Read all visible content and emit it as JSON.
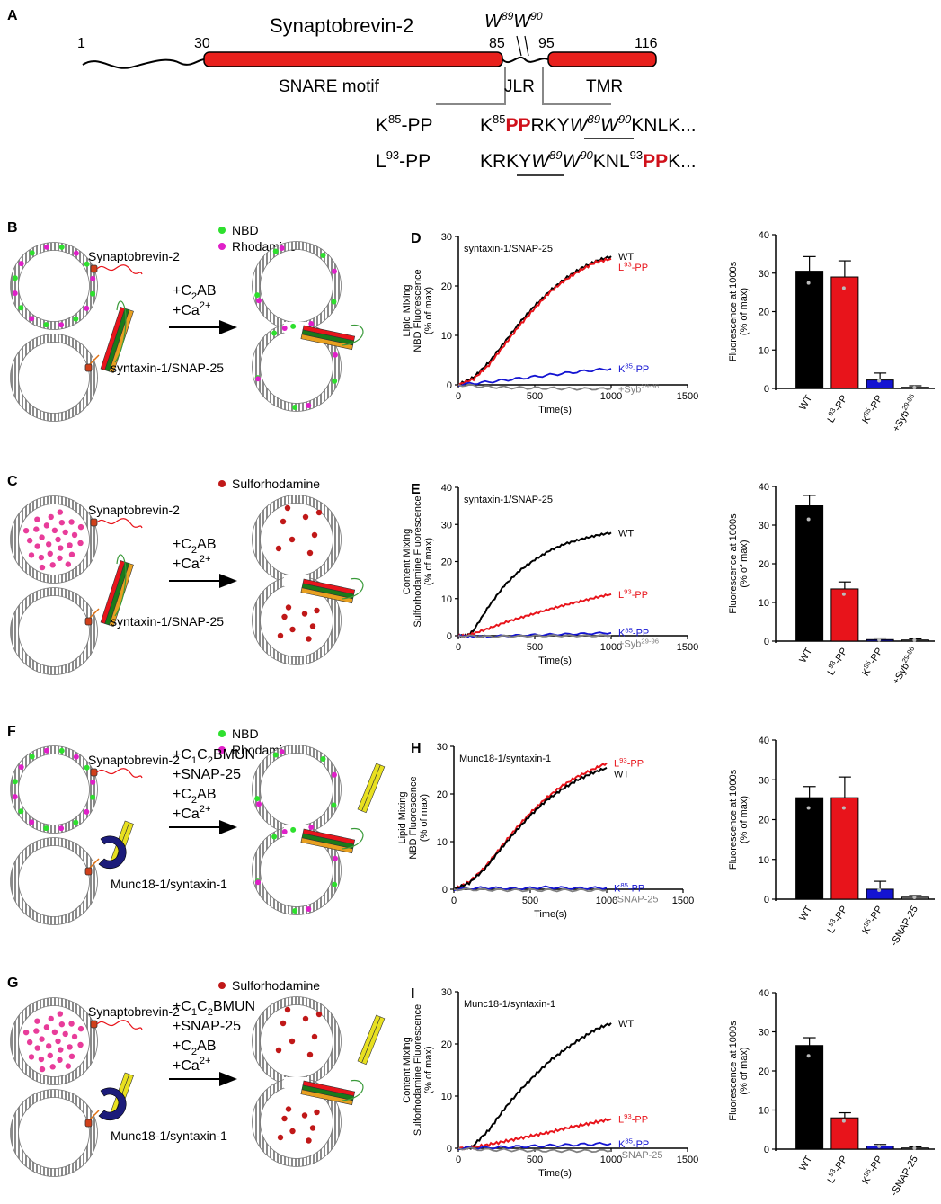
{
  "panel_a": {
    "letter": "A",
    "protein": "Synaptobrevin-2",
    "pos_1": "1",
    "pos_30": "30",
    "pos_85": "85",
    "pos_95": "95",
    "pos_116": "116",
    "w_label": {
      "w1": "W",
      "s1": "89",
      "w2": "W",
      "s2": "90"
    },
    "snare_motif": "SNARE motif",
    "jlr": "JLR",
    "tmr": "TMR",
    "mutant1_name": {
      "a": "K",
      "sup": "85",
      "b": "-PP"
    },
    "mutant1_seq": {
      "a": "K",
      "sup1": "85",
      "pp": "PP",
      "b": "RKY",
      "w1": "W",
      "s1": "89",
      "w2": "W",
      "s2": "90",
      "c": "KNLK..."
    },
    "mutant2_name": {
      "a": "L",
      "sup": "93",
      "b": "-PP"
    },
    "mutant2_seq": {
      "a": "KRKY",
      "w1": "W",
      "s1": "89",
      "w2": "W",
      "s2": "90",
      "b": "KNL",
      "sup2": "93",
      "pp": "PP",
      "c": "K..."
    }
  },
  "schematics": {
    "B": {
      "letter": "B",
      "legend": [
        "NBD",
        "Rhodamine"
      ],
      "vesicle_label": "Synaptobrevin-2",
      "target_label": "syntaxin-1/SNAP-25",
      "steps": [
        "+C2AB",
        "+Ca2+"
      ]
    },
    "C": {
      "letter": "C",
      "legend": [
        "Sulforhodamine"
      ],
      "vesicle_label": "Synaptobrevin-2",
      "target_label": "syntaxin-1/SNAP-25",
      "steps": [
        "+C2AB",
        "+Ca2+"
      ]
    },
    "F": {
      "letter": "F",
      "legend": [
        "NBD",
        "Rhodamine"
      ],
      "vesicle_label": "Synaptobrevin-2",
      "target_label": "Munc18-1/syntaxin-1",
      "steps": [
        "+C1C2BMUN",
        "+SNAP-25",
        "+C2AB",
        "+Ca2+"
      ]
    },
    "G": {
      "letter": "G",
      "legend": [
        "Sulforhodamine"
      ],
      "vesicle_label": "Synaptobrevin-2",
      "target_label": "Munc18-1/syntaxin-1",
      "steps": [
        "+C1C2BMUN",
        "+SNAP-25",
        "+C2AB",
        "+Ca2+"
      ]
    }
  },
  "colors": {
    "wt": "#000000",
    "l93": "#e8141b",
    "k85": "#1414d2",
    "ctrl": "#808080",
    "nbd": "#2ee02e",
    "rhod": "#e020c8",
    "sulfo": "#c01818",
    "snare_red": "#e8201c",
    "munc18": "#1c1c7a"
  },
  "chart_data": [
    {
      "id": "D",
      "letter": "D",
      "type": "line",
      "title": "syntaxin-1/SNAP-25",
      "ylabel_lines": [
        "Lipid Mixing",
        "NBD Fluorescence",
        "(% of max)"
      ],
      "xlabel": "Time(s)",
      "xlim": [
        0,
        1500
      ],
      "ylim": [
        0,
        30
      ],
      "xticks": [
        "0",
        "500",
        "1000",
        "1500"
      ],
      "yticks": [
        "0",
        "10",
        "20",
        "30"
      ],
      "series": [
        {
          "key": "wt",
          "label": "WT",
          "label_base": "WT",
          "label_sup": "",
          "x": [
            0,
            100,
            200,
            300,
            400,
            500,
            600,
            700,
            800,
            900,
            1000
          ],
          "y": [
            0,
            1.5,
            4.5,
            8.5,
            12.5,
            16,
            19,
            21.5,
            23.5,
            25,
            26
          ]
        },
        {
          "key": "l93",
          "label": "L93-PP",
          "label_base": "L",
          "label_sup": "93",
          "label_tail": "-PP",
          "x": [
            0,
            100,
            200,
            300,
            400,
            500,
            600,
            700,
            800,
            900,
            1000
          ],
          "y": [
            0,
            1.2,
            4,
            8,
            12,
            15.5,
            18.8,
            21.2,
            23.2,
            24.8,
            25.5
          ]
        },
        {
          "key": "k85",
          "label": "K85-PP",
          "label_base": "K",
          "label_sup": "85",
          "label_tail": "-PP",
          "x": [
            0,
            200,
            400,
            600,
            800,
            1000
          ],
          "y": [
            0,
            0.6,
            1.3,
            2.0,
            2.7,
            3.3
          ]
        },
        {
          "key": "ctrl",
          "label": "+Syb29-96",
          "label_base": "+Syb",
          "label_sup": "29-96",
          "label_tail": "",
          "x": [
            0,
            200,
            400,
            600,
            800,
            1000
          ],
          "y": [
            0,
            -0.4,
            -0.6,
            -0.7,
            -0.8,
            -0.8
          ]
        }
      ]
    },
    {
      "id": "D_bar",
      "type": "bar",
      "ylabel_lines": [
        "Fluorescence at 1000s",
        "(% of max)"
      ],
      "ylim": [
        0,
        40
      ],
      "yticks": [
        "0",
        "10",
        "20",
        "30",
        "40"
      ],
      "categories": [
        {
          "key": "wt",
          "base": "WT",
          "sup": "",
          "tail": ""
        },
        {
          "key": "l93",
          "base": "L",
          "sup": "93",
          "tail": "-PP"
        },
        {
          "key": "k85",
          "base": "K",
          "sup": "85",
          "tail": "-PP"
        },
        {
          "key": "ctrl",
          "base": "+Syb",
          "sup": "29-96",
          "tail": ""
        }
      ],
      "values": [
        30.5,
        29,
        2.2,
        0.3
      ],
      "errors": [
        3.8,
        4.2,
        1.8,
        0.4
      ]
    },
    {
      "id": "E",
      "letter": "E",
      "type": "line",
      "title": "syntaxin-1/SNAP-25",
      "ylabel_lines": [
        "Content Mixing",
        "Sulforhodamine Fluorescence",
        "(% of max)"
      ],
      "xlabel": "Time(s)",
      "xlim": [
        0,
        1500
      ],
      "ylim": [
        0,
        40
      ],
      "xticks": [
        "0",
        "500",
        "1000",
        "1500"
      ],
      "yticks": [
        "0",
        "10",
        "20",
        "30",
        "40"
      ],
      "series": [
        {
          "key": "wt",
          "label": "WT",
          "label_base": "WT",
          "label_sup": "",
          "label_tail": "",
          "x": [
            0,
            60,
            100,
            200,
            300,
            400,
            500,
            600,
            700,
            800,
            900,
            1000
          ],
          "y": [
            0,
            0,
            1.5,
            8,
            13.5,
            17.5,
            20.5,
            23,
            24.8,
            26,
            27,
            27.8
          ]
        },
        {
          "key": "l93",
          "label": "L93-PP",
          "label_base": "L",
          "label_sup": "93",
          "label_tail": "-PP",
          "x": [
            0,
            60,
            100,
            200,
            300,
            400,
            500,
            600,
            700,
            800,
            900,
            1000
          ],
          "y": [
            0,
            0,
            0.6,
            2,
            3.5,
            4.8,
            6,
            7.2,
            8.3,
            9.3,
            10.3,
            11.2
          ]
        },
        {
          "key": "k85",
          "label": "K85-PP",
          "label_base": "K",
          "label_sup": "85",
          "label_tail": "-PP",
          "x": [
            0,
            100,
            200,
            400,
            600,
            800,
            1000
          ],
          "y": [
            0,
            -0.2,
            -0.2,
            0.1,
            0.3,
            0.5,
            0.8
          ]
        },
        {
          "key": "ctrl",
          "label": "+Syb29-96",
          "label_base": "+Syb",
          "label_sup": "29-96",
          "label_tail": "",
          "x": [
            0,
            200,
            400,
            600,
            800,
            1000
          ],
          "y": [
            0,
            -0.2,
            -0.1,
            0,
            0,
            0
          ]
        }
      ]
    },
    {
      "id": "E_bar",
      "type": "bar",
      "ylabel_lines": [
        "Fluorescence at 1000s",
        "(% of max)"
      ],
      "ylim": [
        0,
        40
      ],
      "yticks": [
        "0",
        "10",
        "20",
        "30",
        "40"
      ],
      "categories": [
        {
          "key": "wt",
          "base": "WT",
          "sup": "",
          "tail": ""
        },
        {
          "key": "l93",
          "base": "L",
          "sup": "93",
          "tail": "-PP"
        },
        {
          "key": "k85",
          "base": "K",
          "sup": "85",
          "tail": "-PP"
        },
        {
          "key": "ctrl",
          "base": "+Syb",
          "sup": "29-96",
          "tail": ""
        }
      ],
      "values": [
        35,
        13.5,
        0.4,
        0.3
      ],
      "errors": [
        2.7,
        1.8,
        0.4,
        0.3
      ]
    },
    {
      "id": "H",
      "letter": "H",
      "type": "line",
      "title": "Munc18-1/syntaxin-1",
      "ylabel_lines": [
        "Lipid Mixing",
        "NBD Fluorescence",
        "(% of max)"
      ],
      "xlabel": "Time(s)",
      "xlim": [
        0,
        1500
      ],
      "ylim": [
        0,
        30
      ],
      "xticks": [
        "0",
        "500",
        "1000",
        "1500"
      ],
      "yticks": [
        "0",
        "10",
        "20",
        "30"
      ],
      "series": [
        {
          "key": "l93",
          "label": "L93-PP",
          "label_base": "L",
          "label_sup": "93",
          "label_tail": "-PP",
          "x": [
            0,
            100,
            200,
            300,
            400,
            500,
            600,
            700,
            800,
            900,
            1000
          ],
          "y": [
            0,
            1.5,
            4.5,
            8.5,
            12.5,
            16,
            19,
            21.5,
            23.5,
            25,
            26.5
          ]
        },
        {
          "key": "wt",
          "label": "WT",
          "label_base": "WT",
          "label_sup": "",
          "label_tail": "",
          "x": [
            0,
            100,
            200,
            300,
            400,
            500,
            600,
            700,
            800,
            900,
            1000
          ],
          "y": [
            0,
            1.3,
            4.2,
            8.2,
            12,
            15.5,
            18.5,
            20.8,
            22.8,
            24.3,
            25.5
          ]
        },
        {
          "key": "k85",
          "label": "K85-PP",
          "label_base": "K",
          "label_sup": "85",
          "label_tail": "-PP",
          "x": [
            0,
            200,
            400,
            600,
            800,
            1000
          ],
          "y": [
            0,
            0.3,
            0.1,
            0.4,
            0.2,
            0.3
          ]
        },
        {
          "key": "ctrl",
          "label": "-SNAP-25",
          "label_base": "-SNAP-25",
          "label_sup": "",
          "label_tail": "",
          "x": [
            0,
            200,
            400,
            600,
            800,
            1000
          ],
          "y": [
            0,
            -0.1,
            -0.2,
            -0.2,
            -0.2,
            -0.2
          ]
        }
      ]
    },
    {
      "id": "H_bar",
      "type": "bar",
      "ylabel_lines": [
        "Fluorescence at 1000s",
        "(% of max)"
      ],
      "ylim": [
        0,
        40
      ],
      "yticks": [
        "0",
        "10",
        "20",
        "30",
        "40"
      ],
      "categories": [
        {
          "key": "wt",
          "base": "WT",
          "sup": "",
          "tail": ""
        },
        {
          "key": "l93",
          "base": "L",
          "sup": "93",
          "tail": "-PP"
        },
        {
          "key": "k85",
          "base": "K",
          "sup": "85",
          "tail": "-PP"
        },
        {
          "key": "ctrl",
          "base": "-SNAP-25",
          "sup": "",
          "tail": ""
        }
      ],
      "values": [
        25.5,
        25.5,
        2.5,
        0.5
      ],
      "errors": [
        2.8,
        5.2,
        2.0,
        0.4
      ]
    },
    {
      "id": "I",
      "letter": "I",
      "type": "line",
      "title": "Munc18-1/syntaxin-1",
      "ylabel_lines": [
        "Content Mixing",
        "Sulforhodamine Fluorescence",
        "(% of max)"
      ],
      "xlabel": "Time(s)",
      "xlim": [
        0,
        1500
      ],
      "ylim": [
        0,
        30
      ],
      "xticks": [
        "0",
        "500",
        "1000",
        "1500"
      ],
      "yticks": [
        "0",
        "10",
        "20",
        "30"
      ],
      "series": [
        {
          "key": "wt",
          "label": "WT",
          "label_base": "WT",
          "label_sup": "",
          "label_tail": "",
          "x": [
            0,
            80,
            100,
            200,
            300,
            400,
            500,
            600,
            700,
            800,
            900,
            1000
          ],
          "y": [
            0,
            0,
            0.6,
            3.5,
            7.5,
            11,
            14,
            16.8,
            19,
            21,
            22.8,
            24
          ]
        },
        {
          "key": "l93",
          "label": "L93-PP",
          "label_base": "L",
          "label_sup": "93",
          "label_tail": "-PP",
          "x": [
            0,
            100,
            200,
            300,
            400,
            500,
            600,
            700,
            800,
            900,
            1000
          ],
          "y": [
            0,
            0.2,
            0.7,
            1.3,
            1.9,
            2.5,
            3.1,
            3.8,
            4.4,
            5.0,
            5.6
          ]
        },
        {
          "key": "k85",
          "label": "K85-PP",
          "label_base": "K",
          "label_sup": "85",
          "label_tail": "-PP",
          "x": [
            0,
            200,
            400,
            600,
            800,
            1000
          ],
          "y": [
            0,
            0.1,
            0.3,
            0.5,
            0.7,
            0.9
          ]
        },
        {
          "key": "ctrl",
          "label": "-SNAP-25",
          "label_base": "-SNAP-25",
          "label_sup": "",
          "label_tail": "",
          "x": [
            0,
            200,
            400,
            600,
            800,
            1000
          ],
          "y": [
            0,
            -0.3,
            -0.4,
            -0.5,
            -0.5,
            -0.5
          ]
        }
      ]
    },
    {
      "id": "I_bar",
      "type": "bar",
      "ylabel_lines": [
        "Fluorescence at 1000s",
        "(% of max)"
      ],
      "ylim": [
        0,
        40
      ],
      "yticks": [
        "0",
        "10",
        "20",
        "30",
        "40"
      ],
      "categories": [
        {
          "key": "wt",
          "base": "WT",
          "sup": "",
          "tail": ""
        },
        {
          "key": "l93",
          "base": "L",
          "sup": "93",
          "tail": "-PP"
        },
        {
          "key": "k85",
          "base": "K",
          "sup": "85",
          "tail": "-PP"
        },
        {
          "key": "ctrl",
          "base": "-SNAP-25",
          "sup": "",
          "tail": ""
        }
      ],
      "values": [
        26.5,
        8,
        0.8,
        0.3
      ],
      "errors": [
        2.0,
        1.3,
        0.4,
        0.3
      ]
    }
  ]
}
